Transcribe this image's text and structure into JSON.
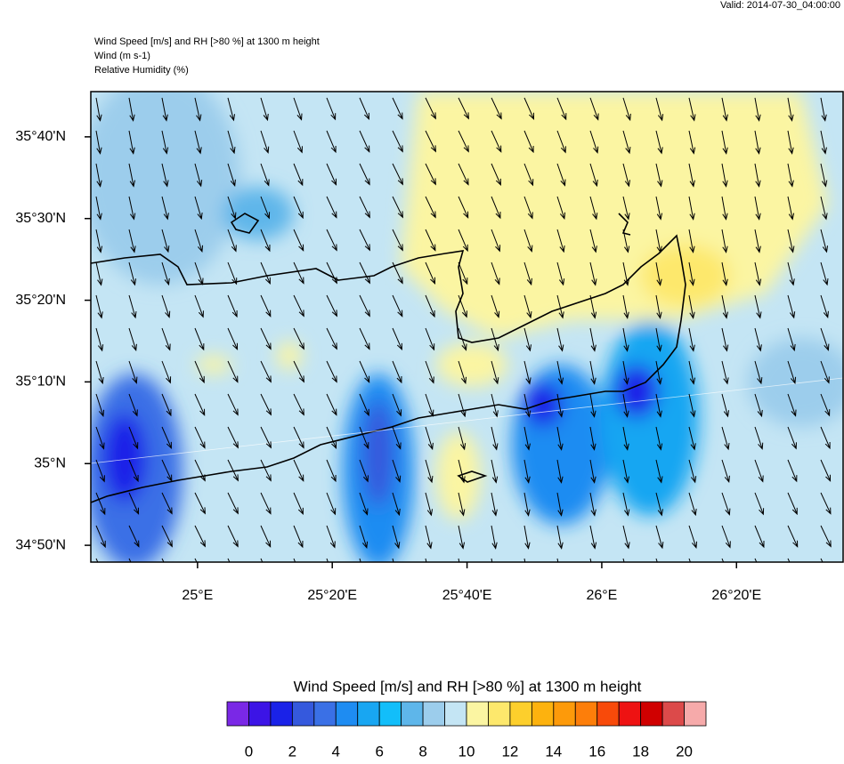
{
  "header": {
    "valid": "Valid: 2014-07-30_04:00:00",
    "lines": [
      "Wind Speed [m/s] and RH [>80 %] at 1300 m height",
      "Wind   (m s-1)",
      "Relative Humidity   (%)"
    ]
  },
  "map": {
    "lat_range": [
      34.799,
      35.759
    ],
    "lon_range": [
      24.736,
      26.597
    ],
    "lat_ticks": [
      {
        "value": 35.6667,
        "label": "35°40'N"
      },
      {
        "value": 35.5,
        "label": "35°30'N"
      },
      {
        "value": 35.3333,
        "label": "35°20'N"
      },
      {
        "value": 35.1667,
        "label": "35°10'N"
      },
      {
        "value": 35,
        "label": "35°N"
      },
      {
        "value": 34.8333,
        "label": "34°50'N"
      }
    ],
    "lon_ticks": [
      {
        "value": 25,
        "label": "25°E"
      },
      {
        "value": 25.3333,
        "label": "25°20'E"
      },
      {
        "value": 25.6667,
        "label": "25°40'E"
      },
      {
        "value": 26,
        "label": "26°E"
      },
      {
        "value": 26.3333,
        "label": "26°20'E"
      }
    ]
  },
  "colorbar": {
    "title": "Wind Speed [m/s] and RH [>80 %] at 1300 m height",
    "lim": [
      -1,
      21
    ],
    "ticks": [
      0,
      2,
      4,
      6,
      8,
      10,
      12,
      14,
      16,
      18,
      20
    ],
    "colors": [
      "#7a28e6",
      "#3c14e6",
      "#1a22e8",
      "#3559dd",
      "#3a70e6",
      "#1e8cf2",
      "#18a6f2",
      "#12befa",
      "#5eb6ea",
      "#9ccdec",
      "#c4e5f4",
      "#fbf5a2",
      "#fde86c",
      "#fdcf2c",
      "#fdb20e",
      "#fd9a0a",
      "#fd7e0a",
      "#f84a0a",
      "#ee1212",
      "#d00000",
      "#dc4a4a",
      "#f6aaaa"
    ]
  }
}
